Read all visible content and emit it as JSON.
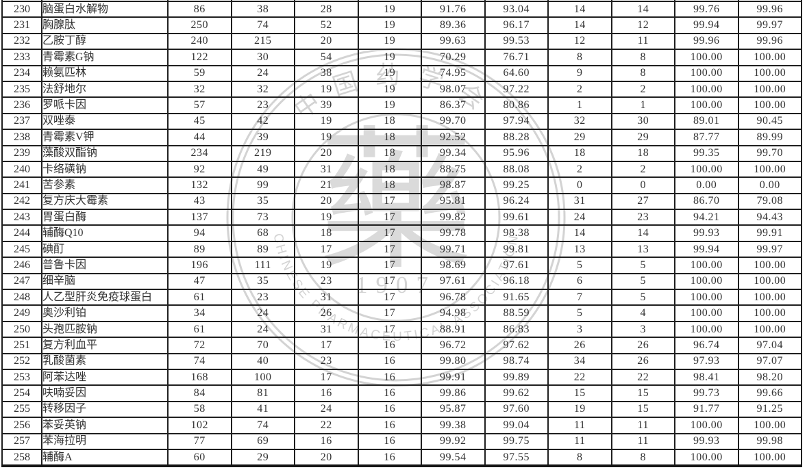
{
  "watermark": {
    "top_text": "中国药学会",
    "bottom_text": "CHINESE PHARMACEUTICAL ASSOCIATION",
    "center_glyph": "藥",
    "year": "1907",
    "color": "#d3d3d3"
  },
  "table": {
    "rows": [
      {
        "no": "230",
        "name": "脑蛋白水解物",
        "values": [
          "86",
          "38",
          "28",
          "19",
          "91.76",
          "93.04",
          "14",
          "14",
          "99.76",
          "99.96"
        ]
      },
      {
        "no": "231",
        "name": "胸腺肽",
        "values": [
          "250",
          "74",
          "52",
          "19",
          "89.36",
          "96.17",
          "14",
          "12",
          "99.94",
          "99.97"
        ]
      },
      {
        "no": "232",
        "name": "乙胺丁醇",
        "values": [
          "240",
          "215",
          "20",
          "19",
          "99.63",
          "99.53",
          "12",
          "11",
          "99.96",
          "99.96"
        ]
      },
      {
        "no": "233",
        "name": "青霉素G钠",
        "values": [
          "122",
          "30",
          "54",
          "19",
          "70.29",
          "76.71",
          "8",
          "8",
          "100.00",
          "100.00"
        ]
      },
      {
        "no": "234",
        "name": "赖氨匹林",
        "values": [
          "59",
          "24",
          "38",
          "19",
          "74.95",
          "64.60",
          "9",
          "8",
          "100.00",
          "100.00"
        ]
      },
      {
        "no": "235",
        "name": "法舒地尔",
        "values": [
          "32",
          "32",
          "19",
          "19",
          "98.07",
          "97.22",
          "2",
          "2",
          "100.00",
          "100.00"
        ]
      },
      {
        "no": "236",
        "name": "罗哌卡因",
        "values": [
          "57",
          "23",
          "39",
          "19",
          "86.37",
          "80.86",
          "1",
          "1",
          "100.00",
          "100.00"
        ]
      },
      {
        "no": "237",
        "name": "双唑泰",
        "values": [
          "45",
          "42",
          "19",
          "18",
          "99.70",
          "97.94",
          "32",
          "30",
          "89.01",
          "90.45"
        ]
      },
      {
        "no": "238",
        "name": "青霉素V钾",
        "values": [
          "44",
          "39",
          "19",
          "18",
          "92.52",
          "88.28",
          "29",
          "29",
          "87.77",
          "89.99"
        ]
      },
      {
        "no": "239",
        "name": "藻酸双酯钠",
        "values": [
          "234",
          "219",
          "20",
          "18",
          "99.34",
          "95.96",
          "18",
          "18",
          "99.35",
          "99.70"
        ]
      },
      {
        "no": "240",
        "name": "卡络磺钠",
        "values": [
          "92",
          "49",
          "31",
          "18",
          "88.75",
          "88.08",
          "2",
          "2",
          "100.00",
          "100.00"
        ]
      },
      {
        "no": "241",
        "name": "苦参素",
        "values": [
          "132",
          "99",
          "21",
          "18",
          "98.87",
          "99.25",
          "0",
          "0",
          "0.00",
          "0.00"
        ]
      },
      {
        "no": "242",
        "name": "复方庆大霉素",
        "values": [
          "43",
          "35",
          "20",
          "17",
          "95.81",
          "96.24",
          "31",
          "27",
          "86.70",
          "79.08"
        ]
      },
      {
        "no": "243",
        "name": "胃蛋白酶",
        "values": [
          "137",
          "73",
          "19",
          "17",
          "99.82",
          "99.61",
          "24",
          "23",
          "94.21",
          "94.43"
        ]
      },
      {
        "no": "244",
        "name": "辅酶Q10",
        "values": [
          "94",
          "68",
          "18",
          "17",
          "99.78",
          "98.38",
          "14",
          "14",
          "99.93",
          "99.91"
        ]
      },
      {
        "no": "245",
        "name": "碘酊",
        "values": [
          "89",
          "89",
          "17",
          "17",
          "99.71",
          "99.81",
          "13",
          "13",
          "99.94",
          "99.97"
        ]
      },
      {
        "no": "246",
        "name": "普鲁卡因",
        "values": [
          "196",
          "111",
          "19",
          "17",
          "98.69",
          "97.61",
          "5",
          "5",
          "100.00",
          "100.00"
        ]
      },
      {
        "no": "247",
        "name": "细辛脑",
        "values": [
          "47",
          "35",
          "23",
          "17",
          "97.61",
          "96.18",
          "6",
          "5",
          "100.00",
          "100.00"
        ]
      },
      {
        "no": "248",
        "name": "人乙型肝炎免疫球蛋白",
        "values": [
          "61",
          "23",
          "31",
          "17",
          "96.78",
          "91.65",
          "7",
          "5",
          "100.00",
          "100.00"
        ]
      },
      {
        "no": "249",
        "name": "奥沙利铂",
        "values": [
          "34",
          "24",
          "26",
          "17",
          "94.98",
          "88.59",
          "5",
          "4",
          "100.00",
          "100.00"
        ]
      },
      {
        "no": "250",
        "name": "头孢匹胺钠",
        "values": [
          "61",
          "24",
          "31",
          "17",
          "88.91",
          "86.83",
          "3",
          "3",
          "100.00",
          "100.00"
        ]
      },
      {
        "no": "251",
        "name": "复方利血平",
        "values": [
          "72",
          "70",
          "17",
          "16",
          "96.72",
          "97.62",
          "26",
          "26",
          "96.74",
          "97.04"
        ]
      },
      {
        "no": "252",
        "name": "乳酸菌素",
        "values": [
          "74",
          "40",
          "23",
          "16",
          "99.80",
          "98.74",
          "34",
          "26",
          "97.93",
          "97.07"
        ]
      },
      {
        "no": "253",
        "name": "阿苯达唑",
        "values": [
          "168",
          "100",
          "17",
          "16",
          "99.91",
          "99.89",
          "22",
          "22",
          "98.41",
          "98.20"
        ]
      },
      {
        "no": "254",
        "name": "呋喃妥因",
        "values": [
          "84",
          "81",
          "16",
          "16",
          "99.86",
          "99.62",
          "15",
          "15",
          "99.73",
          "99.66"
        ]
      },
      {
        "no": "255",
        "name": "转移因子",
        "values": [
          "58",
          "41",
          "24",
          "16",
          "95.87",
          "97.60",
          "19",
          "15",
          "91.77",
          "91.25"
        ]
      },
      {
        "no": "256",
        "name": "苯妥英钠",
        "values": [
          "102",
          "74",
          "22",
          "16",
          "99.38",
          "99.04",
          "11",
          "11",
          "100.00",
          "100.00"
        ]
      },
      {
        "no": "257",
        "name": "苯海拉明",
        "values": [
          "77",
          "69",
          "16",
          "16",
          "99.92",
          "99.75",
          "11",
          "11",
          "99.93",
          "99.98"
        ]
      },
      {
        "no": "258",
        "name": "辅酶A",
        "values": [
          "60",
          "29",
          "20",
          "16",
          "99.54",
          "97.55",
          "8",
          "8",
          "100.00",
          "100.00"
        ]
      }
    ]
  }
}
